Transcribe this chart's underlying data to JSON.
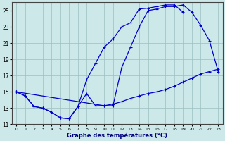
{
  "xlabel": "Graphe des températures (°C)",
  "bg_color": "#cce8e8",
  "line_color": "#0000cc",
  "xlim": [
    -0.5,
    23.5
  ],
  "ylim": [
    11,
    26
  ],
  "yticks": [
    11,
    13,
    15,
    17,
    19,
    21,
    23,
    25
  ],
  "xticks": [
    0,
    1,
    2,
    3,
    4,
    5,
    6,
    7,
    8,
    9,
    10,
    11,
    12,
    13,
    14,
    15,
    16,
    17,
    18,
    19,
    20,
    21,
    22,
    23
  ],
  "curve1_x": [
    0,
    1,
    2,
    3,
    4,
    5,
    6,
    7,
    8,
    9,
    10,
    11,
    12,
    13,
    14,
    15,
    16,
    17,
    18,
    19,
    20,
    21,
    22,
    23
  ],
  "curve1_y": [
    15.0,
    14.5,
    13.2,
    13.0,
    12.5,
    11.8,
    11.7,
    13.2,
    14.8,
    13.3,
    13.3,
    13.3,
    18.0,
    20.5,
    23.0,
    25.0,
    25.2,
    25.5,
    25.5,
    25.7,
    24.8,
    23.2,
    21.3,
    17.5
  ],
  "curve2_x": [
    0,
    1,
    2,
    3,
    4,
    5,
    6,
    7,
    8,
    9,
    10,
    11,
    12,
    13,
    14,
    15,
    16,
    17,
    18,
    19,
    20,
    21,
    22,
    23
  ],
  "curve2_y": [
    15.0,
    14.5,
    13.2,
    13.0,
    12.5,
    11.8,
    11.7,
    13.2,
    16.5,
    18.5,
    20.5,
    21.5,
    23.0,
    23.5,
    25.2,
    25.3,
    25.5,
    25.7,
    25.7,
    24.8,
    null,
    null,
    null,
    null
  ],
  "curve3_x": [
    0,
    1,
    2,
    3,
    4,
    5,
    6,
    7,
    8,
    9,
    10,
    11,
    12,
    13,
    14,
    15,
    16,
    17,
    18,
    19,
    20,
    21,
    22,
    23
  ],
  "curve3_y": [
    15.0,
    null,
    null,
    null,
    null,
    null,
    null,
    null,
    null,
    null,
    13.3,
    13.5,
    13.8,
    14.2,
    14.5,
    14.8,
    15.0,
    15.3,
    15.7,
    16.2,
    16.7,
    17.2,
    17.5,
    17.8
  ]
}
